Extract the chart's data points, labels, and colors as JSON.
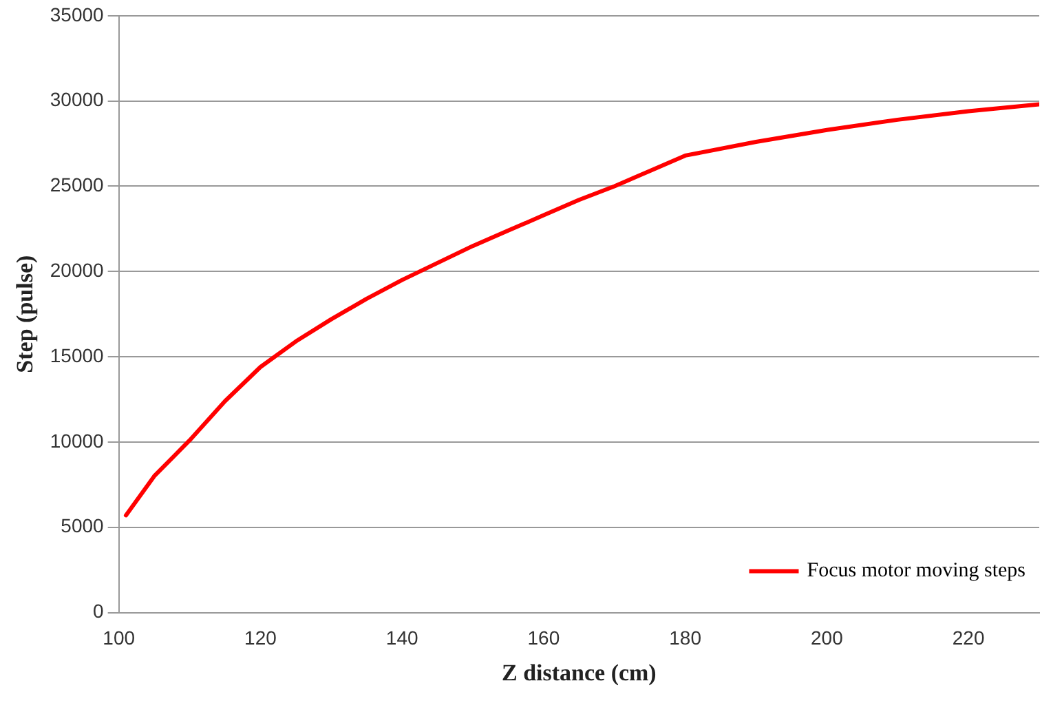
{
  "chart_data": {
    "type": "line",
    "xlabel": "Z distance (cm)",
    "ylabel": "Step (pulse)",
    "x": [
      101,
      105,
      110,
      115,
      120,
      125,
      130,
      135,
      140,
      145,
      150,
      155,
      160,
      165,
      170,
      175,
      180,
      190,
      200,
      210,
      220,
      230
    ],
    "series": [
      {
        "name": "Focus motor moving steps",
        "color": "#ff0000",
        "values": [
          5700,
          8000,
          10100,
          12400,
          14400,
          15900,
          17200,
          18400,
          19500,
          20500,
          21500,
          22400,
          23300,
          24200,
          25000,
          25900,
          26800,
          27600,
          28300,
          28900,
          29400,
          29800
        ]
      }
    ],
    "xlim": [
      100,
      230
    ],
    "xticks": [
      100,
      120,
      140,
      160,
      180,
      200,
      220
    ],
    "ylim": [
      0,
      35000
    ],
    "yticks": [
      0,
      5000,
      10000,
      15000,
      20000,
      25000,
      30000,
      35000
    ],
    "grid": "y",
    "legend": "bottom right",
    "marker": "none",
    "line_style": "solid"
  }
}
